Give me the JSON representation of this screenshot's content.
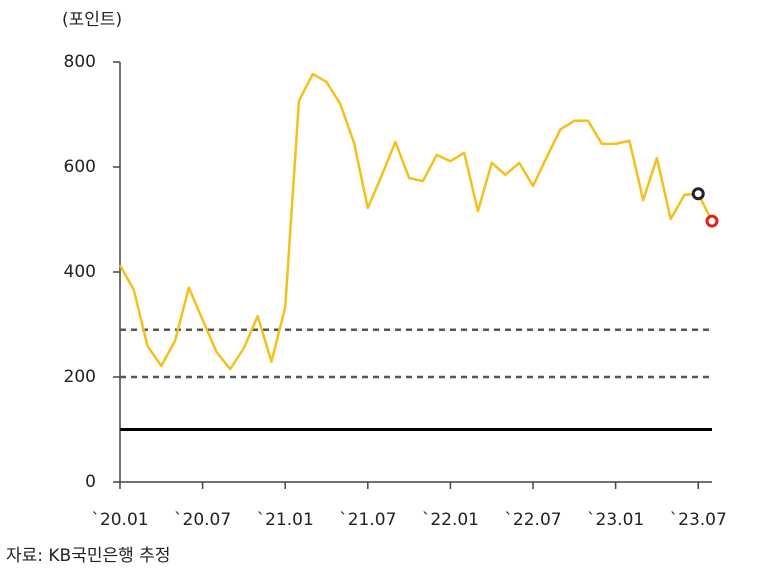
{
  "chart_data": {
    "type": "line",
    "y_label": "(포인트)",
    "source": "자료: KB국민은행 추정",
    "categories": [
      "`20.01",
      null,
      null,
      null,
      null,
      null,
      "`20.07",
      null,
      null,
      null,
      null,
      null,
      "`21.01",
      null,
      null,
      null,
      null,
      null,
      "`21.07",
      null,
      null,
      null,
      null,
      null,
      "`22.01",
      null,
      null,
      null,
      null,
      null,
      "`22.07",
      null,
      null,
      null,
      null,
      null,
      "`23.01",
      null,
      null,
      null,
      null,
      null,
      "`23.07",
      null
    ],
    "series": [
      {
        "color": "#f2c11c",
        "values": [
          413,
          366,
          259,
          221,
          269,
          370,
          309,
          248,
          215,
          255,
          316,
          229,
          333,
          726,
          777,
          762,
          720,
          646,
          522,
          583,
          648,
          579,
          573,
          623,
          611,
          627,
          516,
          608,
          585,
          608,
          564,
          619,
          672,
          688,
          688,
          644,
          644,
          650,
          537,
          617,
          501,
          547,
          549,
          497
        ],
        "marker_colors": [
          null,
          null,
          null,
          null,
          null,
          null,
          null,
          null,
          null,
          null,
          null,
          null,
          null,
          null,
          null,
          null,
          null,
          null,
          null,
          null,
          null,
          null,
          null,
          null,
          null,
          null,
          null,
          null,
          null,
          null,
          null,
          null,
          null,
          null,
          null,
          null,
          null,
          null,
          null,
          null,
          null,
          null,
          "#222222",
          "#e0201c"
        ]
      }
    ],
    "reference_lines": [
      {
        "value": 290,
        "style": "dashed",
        "color": "#555555"
      },
      {
        "value": 200,
        "style": "dashed",
        "color": "#555555"
      },
      {
        "value": 100,
        "style": "solid",
        "color": "#000000"
      }
    ],
    "ylim": [
      0,
      800
    ],
    "yticks": [
      0,
      200,
      400,
      600,
      800
    ],
    "grid": false
  }
}
